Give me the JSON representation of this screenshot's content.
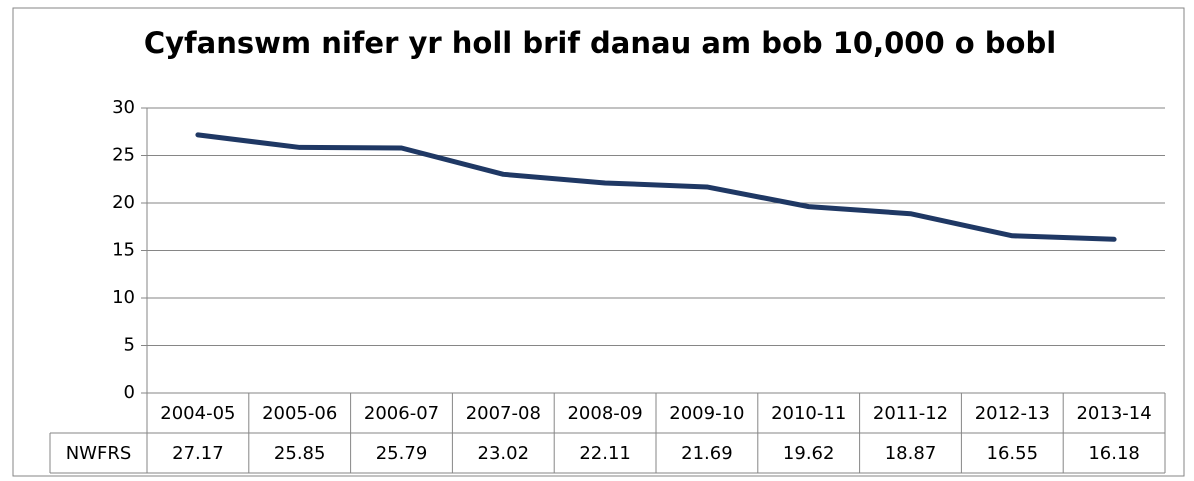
{
  "chart_data": {
    "type": "line",
    "title": "Cyfanswm nifer yr holl brif danau am bob 10,000 o bobl",
    "categories": [
      "2004-05",
      "2005-06",
      "2006-07",
      "2007-08",
      "2008-09",
      "2009-10",
      "2010-11",
      "2011-12",
      "2012-13",
      "2013-14"
    ],
    "series": [
      {
        "name": "NWFRS",
        "color": "#1f3864",
        "values": [
          27.17,
          25.85,
          25.79,
          23.02,
          22.11,
          21.69,
          19.62,
          18.87,
          16.55,
          16.18
        ]
      }
    ],
    "ylim": [
      0,
      30
    ],
    "yticks": [
      0,
      5,
      10,
      15,
      20,
      25,
      30
    ],
    "grid": true,
    "data_table": true
  }
}
